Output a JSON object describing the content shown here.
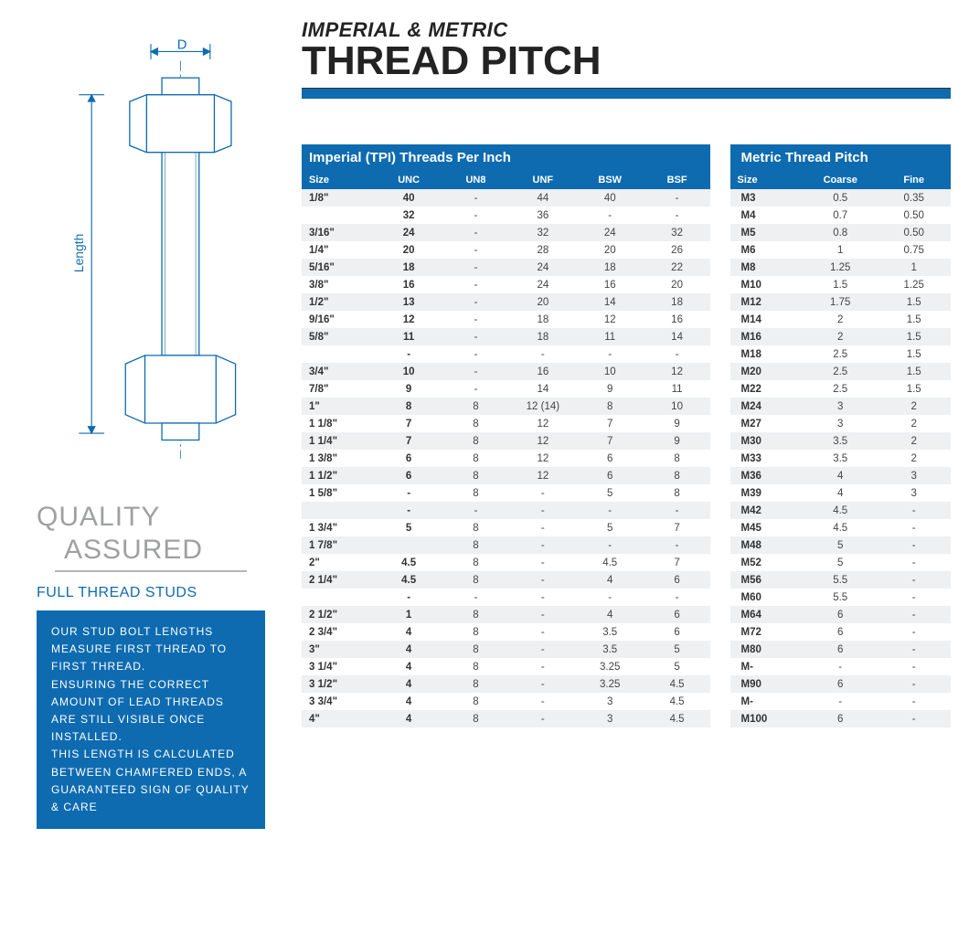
{
  "diagram": {
    "d_label": "D",
    "length_label": "Length",
    "stroke_color": "#0e6bb0"
  },
  "quality": {
    "line1": "QUALITY",
    "line2": "ASSURED",
    "subtitle": "FULL THREAD STUDS",
    "info_text": "OUR STUD BOLT LENGTHS MEASURE FIRST THREAD TO FIRST THREAD.\nENSURING THE CORRECT AMOUNT OF LEAD THREADS ARE STILL VISIBLE ONCE INSTALLED.\nTHIS LENGTH IS CALCULATED BETWEEN CHAMFERED ENDS, A GUARANTEED SIGN OF QUALITY & CARE"
  },
  "heading": {
    "super": "IMPERIAL & METRIC",
    "main": "THREAD PITCH"
  },
  "table": {
    "imperial_group_header": "Imperial (TPI) Threads Per Inch",
    "metric_group_header": "Metric Thread Pitch",
    "columns": {
      "size": "Size",
      "unc": "UNC",
      "un8": "UN8",
      "unf": "UNF",
      "bsw": "BSW",
      "bsf": "BSF",
      "msize": "Size",
      "coarse": "Coarse",
      "fine": "Fine"
    },
    "rows": [
      {
        "size": "1/8\"",
        "unc": "40",
        "un8": "-",
        "unf": "44",
        "bsw": "40",
        "bsf": "-",
        "msize": "M3",
        "coarse": "0.5",
        "fine": "0.35"
      },
      {
        "size": "",
        "unc": "32",
        "un8": "-",
        "unf": "36",
        "bsw": "-",
        "bsf": "-",
        "msize": "M4",
        "coarse": "0.7",
        "fine": "0.50"
      },
      {
        "size": "3/16\"",
        "unc": "24",
        "un8": "-",
        "unf": "32",
        "bsw": "24",
        "bsf": "32",
        "msize": "M5",
        "coarse": "0.8",
        "fine": "0.50"
      },
      {
        "size": "1/4\"",
        "unc": "20",
        "un8": "-",
        "unf": "28",
        "bsw": "20",
        "bsf": "26",
        "msize": "M6",
        "coarse": "1",
        "fine": "0.75"
      },
      {
        "size": "5/16\"",
        "unc": "18",
        "un8": "-",
        "unf": "24",
        "bsw": "18",
        "bsf": "22",
        "msize": "M8",
        "coarse": "1.25",
        "fine": "1"
      },
      {
        "size": "3/8\"",
        "unc": "16",
        "un8": "-",
        "unf": "24",
        "bsw": "16",
        "bsf": "20",
        "msize": "M10",
        "coarse": "1.5",
        "fine": "1.25"
      },
      {
        "size": "1/2\"",
        "unc": "13",
        "un8": "-",
        "unf": "20",
        "bsw": "14",
        "bsf": "18",
        "msize": "M12",
        "coarse": "1.75",
        "fine": "1.5"
      },
      {
        "size": "9/16\"",
        "unc": "12",
        "un8": "-",
        "unf": "18",
        "bsw": "12",
        "bsf": "16",
        "msize": "M14",
        "coarse": "2",
        "fine": "1.5"
      },
      {
        "size": "5/8\"",
        "unc": "11",
        "un8": "-",
        "unf": "18",
        "bsw": "11",
        "bsf": "14",
        "msize": "M16",
        "coarse": "2",
        "fine": "1.5"
      },
      {
        "size": "",
        "unc": "-",
        "un8": "-",
        "unf": "-",
        "bsw": "-",
        "bsf": "-",
        "msize": "M18",
        "coarse": "2.5",
        "fine": "1.5"
      },
      {
        "size": "3/4\"",
        "unc": "10",
        "un8": "-",
        "unf": "16",
        "bsw": "10",
        "bsf": "12",
        "msize": "M20",
        "coarse": "2.5",
        "fine": "1.5"
      },
      {
        "size": "7/8\"",
        "unc": "9",
        "un8": "-",
        "unf": "14",
        "bsw": "9",
        "bsf": "11",
        "msize": "M22",
        "coarse": "2.5",
        "fine": "1.5"
      },
      {
        "size": "1\"",
        "unc": "8",
        "un8": "8",
        "unf": "12 (14)",
        "bsw": "8",
        "bsf": "10",
        "msize": "M24",
        "coarse": "3",
        "fine": "2"
      },
      {
        "size": "1  1/8\"",
        "unc": "7",
        "un8": "8",
        "unf": "12",
        "bsw": "7",
        "bsf": "9",
        "msize": "M27",
        "coarse": "3",
        "fine": "2"
      },
      {
        "size": "1  1/4\"",
        "unc": "7",
        "un8": "8",
        "unf": "12",
        "bsw": "7",
        "bsf": "9",
        "msize": "M30",
        "coarse": "3.5",
        "fine": "2"
      },
      {
        "size": "1  3/8\"",
        "unc": "6",
        "un8": "8",
        "unf": "12",
        "bsw": "6",
        "bsf": "8",
        "msize": "M33",
        "coarse": "3.5",
        "fine": "2"
      },
      {
        "size": "1  1/2\"",
        "unc": "6",
        "un8": "8",
        "unf": "12",
        "bsw": "6",
        "bsf": "8",
        "msize": "M36",
        "coarse": "4",
        "fine": "3"
      },
      {
        "size": "1  5/8\"",
        "unc": "-",
        "un8": "8",
        "unf": "-",
        "bsw": "5",
        "bsf": "8",
        "msize": "M39",
        "coarse": "4",
        "fine": "3"
      },
      {
        "size": "",
        "unc": "-",
        "un8": "-",
        "unf": "-",
        "bsw": "-",
        "bsf": "-",
        "msize": "M42",
        "coarse": "4.5",
        "fine": "-"
      },
      {
        "size": "1  3/4\"",
        "unc": "5",
        "un8": "8",
        "unf": "-",
        "bsw": "5",
        "bsf": "7",
        "msize": "M45",
        "coarse": "4.5",
        "fine": "-"
      },
      {
        "size": "1  7/8\"",
        "unc": "",
        "un8": "8",
        "unf": "-",
        "bsw": "-",
        "bsf": "-",
        "msize": "M48",
        "coarse": "5",
        "fine": "-"
      },
      {
        "size": "2\"",
        "unc": "4.5",
        "un8": "8",
        "unf": "-",
        "bsw": "4.5",
        "bsf": "7",
        "msize": "M52",
        "coarse": "5",
        "fine": "-"
      },
      {
        "size": "2  1/4\"",
        "unc": "4.5",
        "un8": "8",
        "unf": "-",
        "bsw": "4",
        "bsf": "6",
        "msize": "M56",
        "coarse": "5.5",
        "fine": "-"
      },
      {
        "size": "",
        "unc": "-",
        "un8": "-",
        "unf": "-",
        "bsw": "-",
        "bsf": "-",
        "msize": "M60",
        "coarse": "5.5",
        "fine": "-"
      },
      {
        "size": "2  1/2\"",
        "unc": "1",
        "un8": "8",
        "unf": "-",
        "bsw": "4",
        "bsf": "6",
        "msize": "M64",
        "coarse": "6",
        "fine": "-"
      },
      {
        "size": "2  3/4\"",
        "unc": "4",
        "un8": "8",
        "unf": "-",
        "bsw": "3.5",
        "bsf": "6",
        "msize": "M72",
        "coarse": "6",
        "fine": "-"
      },
      {
        "size": "3\"",
        "unc": "4",
        "un8": "8",
        "unf": "-",
        "bsw": "3.5",
        "bsf": "5",
        "msize": "M80",
        "coarse": "6",
        "fine": "-"
      },
      {
        "size": "3  1/4\"",
        "unc": "4",
        "un8": "8",
        "unf": "-",
        "bsw": "3.25",
        "bsf": "5",
        "msize": "M-",
        "coarse": "-",
        "fine": "-"
      },
      {
        "size": "3  1/2\"",
        "unc": "4",
        "un8": "8",
        "unf": "-",
        "bsw": "3.25",
        "bsf": "4.5",
        "msize": "M90",
        "coarse": "6",
        "fine": "-"
      },
      {
        "size": "3  3/4\"",
        "unc": "4",
        "un8": "8",
        "unf": "-",
        "bsw": "3",
        "bsf": "4.5",
        "msize": "M-",
        "coarse": "-",
        "fine": "-"
      },
      {
        "size": "4\"",
        "unc": "4",
        "un8": "8",
        "unf": "-",
        "bsw": "3",
        "bsf": "4.5",
        "msize": "M100",
        "coarse": "6",
        "fine": "-"
      }
    ]
  },
  "colors": {
    "brand_blue": "#0e6bb0",
    "row_alt": "#eef0f2",
    "text_grey": "#9fa0a0"
  }
}
